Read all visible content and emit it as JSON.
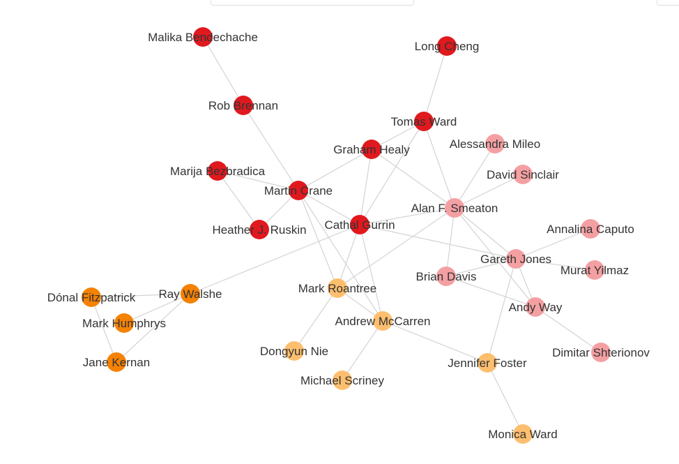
{
  "toolbar": {
    "search_value": "",
    "button_label": ""
  },
  "groups": {
    "red": "#e0191f",
    "pink": "#f4a0a3",
    "orange": "#f58205",
    "light_orange": "#fdbf6f"
  },
  "nodes": [
    {
      "id": "malika",
      "label": "Malika Bendechache",
      "group": "red"
    },
    {
      "id": "rob",
      "label": "Rob Brennan",
      "group": "red"
    },
    {
      "id": "long",
      "label": "Long Cheng",
      "group": "red"
    },
    {
      "id": "tomas",
      "label": "Tomas Ward",
      "group": "red"
    },
    {
      "id": "graham",
      "label": "Graham Healy",
      "group": "red"
    },
    {
      "id": "marija",
      "label": "Marija Bezbradica",
      "group": "red"
    },
    {
      "id": "martin",
      "label": "Martin Crane",
      "group": "red"
    },
    {
      "id": "heather",
      "label": "Heather J. Ruskin",
      "group": "red"
    },
    {
      "id": "cathal",
      "label": "Cathal Gurrin",
      "group": "red"
    },
    {
      "id": "alessandra",
      "label": "Alessandra Mileo",
      "group": "pink"
    },
    {
      "id": "david",
      "label": "David Sinclair",
      "group": "pink"
    },
    {
      "id": "alan",
      "label": "Alan F. Smeaton",
      "group": "pink"
    },
    {
      "id": "annalina",
      "label": "Annalina Caputo",
      "group": "pink"
    },
    {
      "id": "gareth",
      "label": "Gareth Jones",
      "group": "pink"
    },
    {
      "id": "murat",
      "label": "Murat Yilmaz",
      "group": "pink"
    },
    {
      "id": "brian",
      "label": "Brian Davis",
      "group": "pink"
    },
    {
      "id": "andy",
      "label": "Andy Way",
      "group": "pink"
    },
    {
      "id": "dimitar",
      "label": "Dimitar Shterionov",
      "group": "pink"
    },
    {
      "id": "donal",
      "label": "Dónal Fitzpatrick",
      "group": "orange"
    },
    {
      "id": "ray",
      "label": "Ray Walshe",
      "group": "orange"
    },
    {
      "id": "humphrys",
      "label": "Mark Humphrys",
      "group": "orange"
    },
    {
      "id": "jane",
      "label": "Jane Kernan",
      "group": "orange"
    },
    {
      "id": "roantree",
      "label": "Mark Roantree",
      "group": "light_orange"
    },
    {
      "id": "mccarren",
      "label": "Andrew McCarren",
      "group": "light_orange"
    },
    {
      "id": "dongyun",
      "label": "Dongyun Nie",
      "group": "light_orange"
    },
    {
      "id": "scriney",
      "label": "Michael Scriney",
      "group": "light_orange"
    },
    {
      "id": "jennifer",
      "label": "Jennifer Foster",
      "group": "light_orange"
    },
    {
      "id": "monica",
      "label": "Monica Ward",
      "group": "light_orange"
    }
  ],
  "edges": [
    [
      "malika",
      "rob"
    ],
    [
      "rob",
      "martin"
    ],
    [
      "long",
      "tomas"
    ],
    [
      "tomas",
      "graham"
    ],
    [
      "tomas",
      "cathal"
    ],
    [
      "tomas",
      "alan"
    ],
    [
      "graham",
      "martin"
    ],
    [
      "graham",
      "cathal"
    ],
    [
      "graham",
      "alan"
    ],
    [
      "marija",
      "martin"
    ],
    [
      "marija",
      "heather"
    ],
    [
      "martin",
      "heather"
    ],
    [
      "martin",
      "cathal"
    ],
    [
      "martin",
      "roantree"
    ],
    [
      "martin",
      "mccarren"
    ],
    [
      "cathal",
      "alan"
    ],
    [
      "cathal",
      "gareth"
    ],
    [
      "cathal",
      "ray"
    ],
    [
      "cathal",
      "roantree"
    ],
    [
      "cathal",
      "mccarren"
    ],
    [
      "alessandra",
      "alan"
    ],
    [
      "david",
      "alan"
    ],
    [
      "alan",
      "brian"
    ],
    [
      "alan",
      "gareth"
    ],
    [
      "alan",
      "andy"
    ],
    [
      "alan",
      "roantree"
    ],
    [
      "annalina",
      "gareth"
    ],
    [
      "gareth",
      "murat"
    ],
    [
      "gareth",
      "andy"
    ],
    [
      "gareth",
      "jennifer"
    ],
    [
      "gareth",
      "brian"
    ],
    [
      "brian",
      "andy"
    ],
    [
      "andy",
      "dimitar"
    ],
    [
      "donal",
      "ray"
    ],
    [
      "donal",
      "jane"
    ],
    [
      "ray",
      "humphrys"
    ],
    [
      "ray",
      "jane"
    ],
    [
      "roantree",
      "mccarren"
    ],
    [
      "roantree",
      "dongyun"
    ],
    [
      "mccarren",
      "scriney"
    ],
    [
      "mccarren",
      "jennifer"
    ],
    [
      "jennifer",
      "monica"
    ]
  ]
}
